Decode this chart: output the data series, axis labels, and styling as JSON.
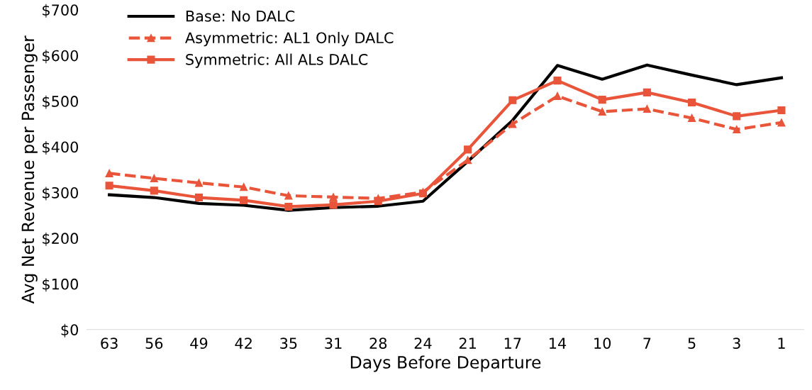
{
  "chart_data": {
    "type": "line",
    "xlabel": "Days Before Departure",
    "ylabel": "Avg Net Revenue per Passenger",
    "categories": [
      "63",
      "56",
      "49",
      "42",
      "35",
      "31",
      "28",
      "24",
      "21",
      "17",
      "14",
      "10",
      "7",
      "5",
      "3",
      "1"
    ],
    "ylim": [
      0,
      700
    ],
    "yticks": [
      {
        "value": 0,
        "label": "$0"
      },
      {
        "value": 100,
        "label": "$100"
      },
      {
        "value": 200,
        "label": "$200"
      },
      {
        "value": 300,
        "label": "$300"
      },
      {
        "value": 400,
        "label": "$400"
      },
      {
        "value": 500,
        "label": "$500"
      },
      {
        "value": 600,
        "label": "$600"
      },
      {
        "value": 700,
        "label": "$700"
      }
    ],
    "grid": false,
    "legend": "top left",
    "series": [
      {
        "name": "Base: No DALC",
        "color": "#000000",
        "marker": "none",
        "line_style": "solid",
        "values": [
          295,
          289,
          276,
          272,
          261,
          267,
          270,
          281,
          368,
          458,
          578,
          548,
          579,
          557,
          536,
          551
        ]
      },
      {
        "name": "Asymmetric: AL1 Only DALC",
        "color": "#e8553a",
        "marker": "triangle",
        "line_style": "dashed",
        "values": [
          342,
          331,
          321,
          312,
          293,
          290,
          287,
          301,
          371,
          450,
          511,
          477,
          483,
          463,
          438,
          453
        ]
      },
      {
        "name": "Symmetric: All ALs DALC",
        "color": "#e8553a",
        "marker": "square",
        "line_style": "solid",
        "values": [
          315,
          304,
          289,
          283,
          269,
          273,
          281,
          298,
          394,
          502,
          545,
          503,
          519,
          497,
          467,
          480
        ]
      }
    ]
  }
}
